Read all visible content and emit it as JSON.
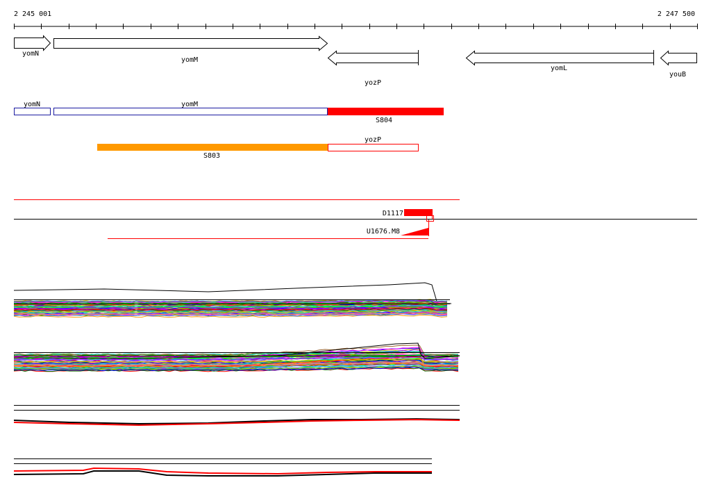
{
  "ruler": {
    "start_label": "2 245 001",
    "end_label": "2 247 500"
  },
  "colors": {
    "feature_outline": "#000000",
    "transcript_outline": "#1a1aa0",
    "segment_red": "#ff0000",
    "segment_orange": "#ff9900",
    "baseline": "#000000"
  },
  "genes": [
    {
      "name": "yomN",
      "strand": "+"
    },
    {
      "name": "yomM",
      "strand": "+"
    },
    {
      "name": "yozP",
      "strand": "-"
    },
    {
      "name": "yomL",
      "strand": "-"
    },
    {
      "name": "youB",
      "strand": "-"
    }
  ],
  "transcription_units": {
    "forward_track": [
      {
        "label": "yomN",
        "kind": "gene"
      },
      {
        "label": "yomM",
        "kind": "gene"
      },
      {
        "label": "S804",
        "kind": "segment",
        "color": "#ff0000"
      }
    ],
    "reverse_track": [
      {
        "label": "S803",
        "kind": "segment",
        "color": "#ff9900"
      },
      {
        "label": "yozP",
        "kind": "gene"
      }
    ]
  },
  "signals": {
    "down_shift": {
      "label": "D1117"
    },
    "up_shift": {
      "label": "U1676.M8"
    }
  },
  "expression_panels": [
    {
      "id": "forward-strand-profiles"
    },
    {
      "id": "reverse-strand-profiles"
    },
    {
      "id": "forward-strand-smoothed"
    },
    {
      "id": "reverse-strand-smoothed"
    }
  ]
}
